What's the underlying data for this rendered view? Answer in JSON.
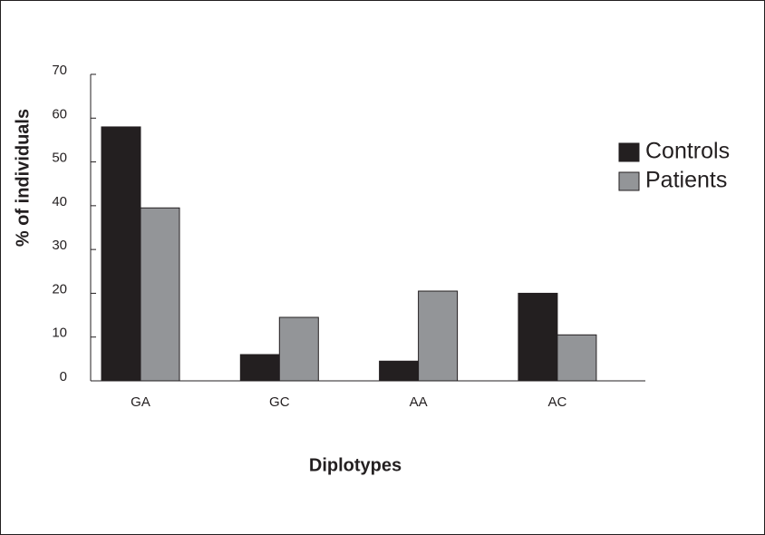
{
  "chart_data": {
    "type": "bar",
    "y_label": "% of individuals",
    "x_label": "Diplotypes",
    "categories": [
      "GA",
      "GC",
      "AA",
      "AC"
    ],
    "series": [
      {
        "name": "Controls",
        "color": "#231f20",
        "values": [
          58,
          6,
          4.5,
          20
        ]
      },
      {
        "name": "Patients",
        "color": "#939598",
        "values": [
          39.5,
          14.5,
          20.5,
          10.5
        ]
      }
    ],
    "ylim": [
      0,
      70
    ],
    "yticks": [
      0,
      10,
      20,
      30,
      40,
      50,
      60,
      70
    ],
    "grid": false,
    "legend": "right"
  }
}
